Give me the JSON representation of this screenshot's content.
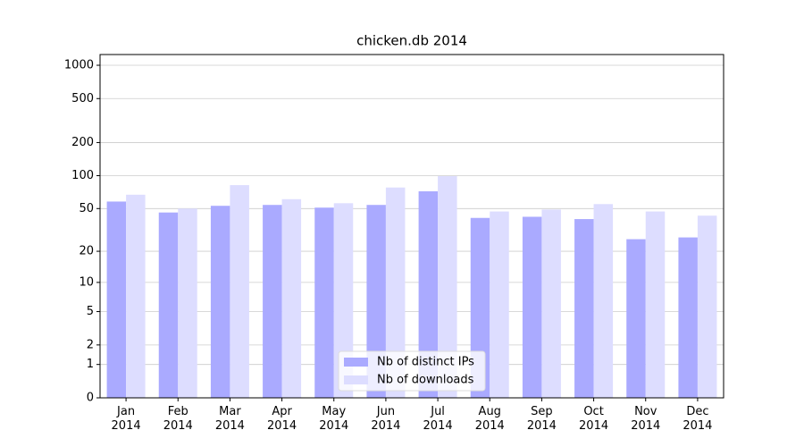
{
  "chart_data": {
    "type": "bar",
    "title": "chicken.db 2014",
    "categories": [
      "Jan\n2014",
      "Feb\n2014",
      "Mar\n2014",
      "Apr\n2014",
      "May\n2014",
      "Jun\n2014",
      "Jul\n2014",
      "Aug\n2014",
      "Sep\n2014",
      "Oct\n2014",
      "Nov\n2014",
      "Dec\n2014"
    ],
    "series": [
      {
        "name": "Nb of distinct IPs",
        "color": "#aaaaff",
        "values": [
          58,
          46,
          53,
          54,
          51,
          54,
          72,
          41,
          42,
          40,
          26,
          27
        ]
      },
      {
        "name": "Nb of downloads",
        "color": "#ddddff",
        "values": [
          67,
          50,
          82,
          61,
          56,
          78,
          99,
          47,
          49,
          55,
          47,
          43
        ]
      }
    ],
    "yscale": "symlog1p",
    "ylim": [
      0,
      1250
    ],
    "yticks": [
      0,
      1,
      2,
      5,
      10,
      20,
      50,
      100,
      200,
      500,
      1000
    ],
    "grid": true,
    "legend": "lower center"
  }
}
